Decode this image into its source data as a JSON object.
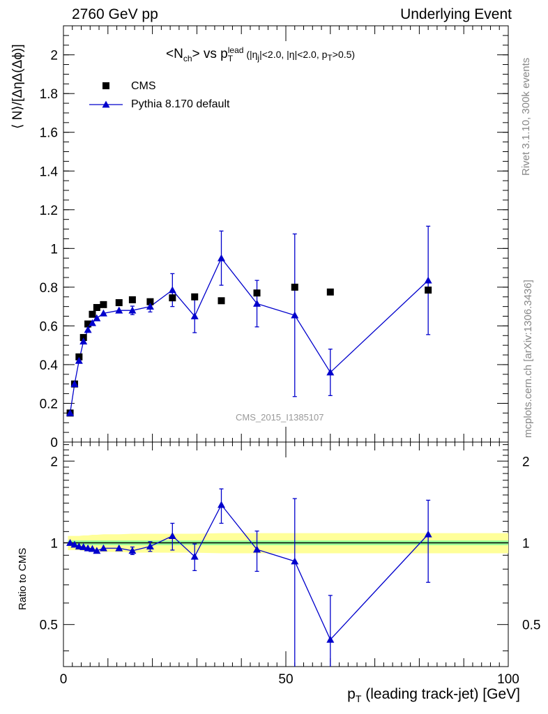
{
  "header": {
    "left": "2760 GeV pp",
    "right": "Underlying Event",
    "side_top": "Rivet 3.1.10,  300k events",
    "side_bottom": "mcplots.cern.ch [arXiv:1306.3436]"
  },
  "plot_title": {
    "main": "<N",
    "sub1": "ch",
    "mid": "> vs p",
    "sup": "lead",
    "sub2": "T",
    "cuts_a": "(|η",
    "cuts_a_sub": "j",
    "cuts_b": "|<2.0, |η|<2.0, p",
    "cuts_b_sub": "T",
    "cuts_c": ">0.5)"
  },
  "watermark": "CMS_2015_I1385107",
  "legend": {
    "cms": "CMS",
    "pythia": "Pythia 8.170 default"
  },
  "colors": {
    "pythia": "#0000cc",
    "data": "#000000",
    "band_outer": "#ffff99",
    "band_inner": "#99ff99"
  },
  "chart_data": [
    {
      "type": "scatter",
      "panel": "main",
      "ylabel": "⟨ N⟩/[ΔηΔ(Δϕ)]",
      "xlim": [
        0,
        100
      ],
      "ylim": [
        0,
        2.15
      ],
      "yticks": [
        "0",
        "0.2",
        "0.4",
        "0.6",
        "0.8",
        "1",
        "1.2",
        "1.4",
        "1.6",
        "1.8",
        "2"
      ],
      "series": [
        {
          "name": "CMS",
          "x": [
            1.5,
            2.5,
            3.5,
            4.5,
            5.5,
            6.5,
            7.5,
            9.0,
            12.5,
            15.5,
            19.5,
            24.5,
            29.5,
            35.5,
            43.5,
            52.0,
            60.0,
            82.0
          ],
          "y": [
            0.15,
            0.3,
            0.44,
            0.54,
            0.61,
            0.66,
            0.695,
            0.71,
            0.72,
            0.735,
            0.725,
            0.745,
            0.75,
            0.73,
            0.77,
            0.8,
            0.775,
            0.785
          ]
        },
        {
          "name": "Pythia 8.170 default",
          "x": [
            1.5,
            2.5,
            3.5,
            4.5,
            5.5,
            6.5,
            7.5,
            9.0,
            12.5,
            15.5,
            19.5,
            24.5,
            29.5,
            35.5,
            43.5,
            52.0,
            60.0,
            82.0
          ],
          "y": [
            0.15,
            0.3,
            0.42,
            0.52,
            0.58,
            0.615,
            0.64,
            0.665,
            0.68,
            0.68,
            0.7,
            0.785,
            0.65,
            0.95,
            0.715,
            0.655,
            0.36,
            0.835
          ],
          "err": [
            0.003,
            0.005,
            0.006,
            0.008,
            0.01,
            0.01,
            0.012,
            0.014,
            0.018,
            0.022,
            0.028,
            0.085,
            0.085,
            0.14,
            0.12,
            0.42,
            0.12,
            0.28
          ]
        }
      ]
    },
    {
      "type": "scatter",
      "panel": "ratio",
      "ylabel": "Ratio to CMS",
      "xlabel_main": "p",
      "xlabel_sub": "T",
      "xlabel_rest": " (leading track-jet) [GeV]",
      "xlim": [
        0,
        100
      ],
      "ylim": [
        0.35,
        2.35
      ],
      "yticks": [
        "0.5",
        "1",
        "2"
      ],
      "xticks": [
        "0",
        "50",
        "100"
      ],
      "x": [
        1.5,
        2.5,
        3.5,
        4.5,
        5.5,
        6.5,
        7.5,
        9.0,
        12.5,
        15.5,
        19.5,
        24.5,
        29.5,
        35.5,
        43.5,
        52.0,
        60.0,
        82.0
      ],
      "ratio": [
        1.0,
        0.985,
        0.97,
        0.965,
        0.955,
        0.95,
        0.935,
        0.955,
        0.955,
        0.935,
        0.97,
        1.06,
        0.89,
        1.38,
        0.945,
        0.855,
        0.44,
        1.075
      ],
      "err": [
        0.01,
        0.015,
        0.015,
        0.015,
        0.015,
        0.015,
        0.015,
        0.015,
        0.02,
        0.03,
        0.04,
        0.12,
        0.1,
        0.2,
        0.16,
        0.6,
        0.2,
        0.36
      ],
      "band_inner": 0.02,
      "band_outer": [
        0.06,
        0.06,
        0.06,
        0.065,
        0.065,
        0.07,
        0.07,
        0.075,
        0.075,
        0.08,
        0.08,
        0.08,
        0.08,
        0.085,
        0.085,
        0.085,
        0.085,
        0.085
      ]
    }
  ]
}
